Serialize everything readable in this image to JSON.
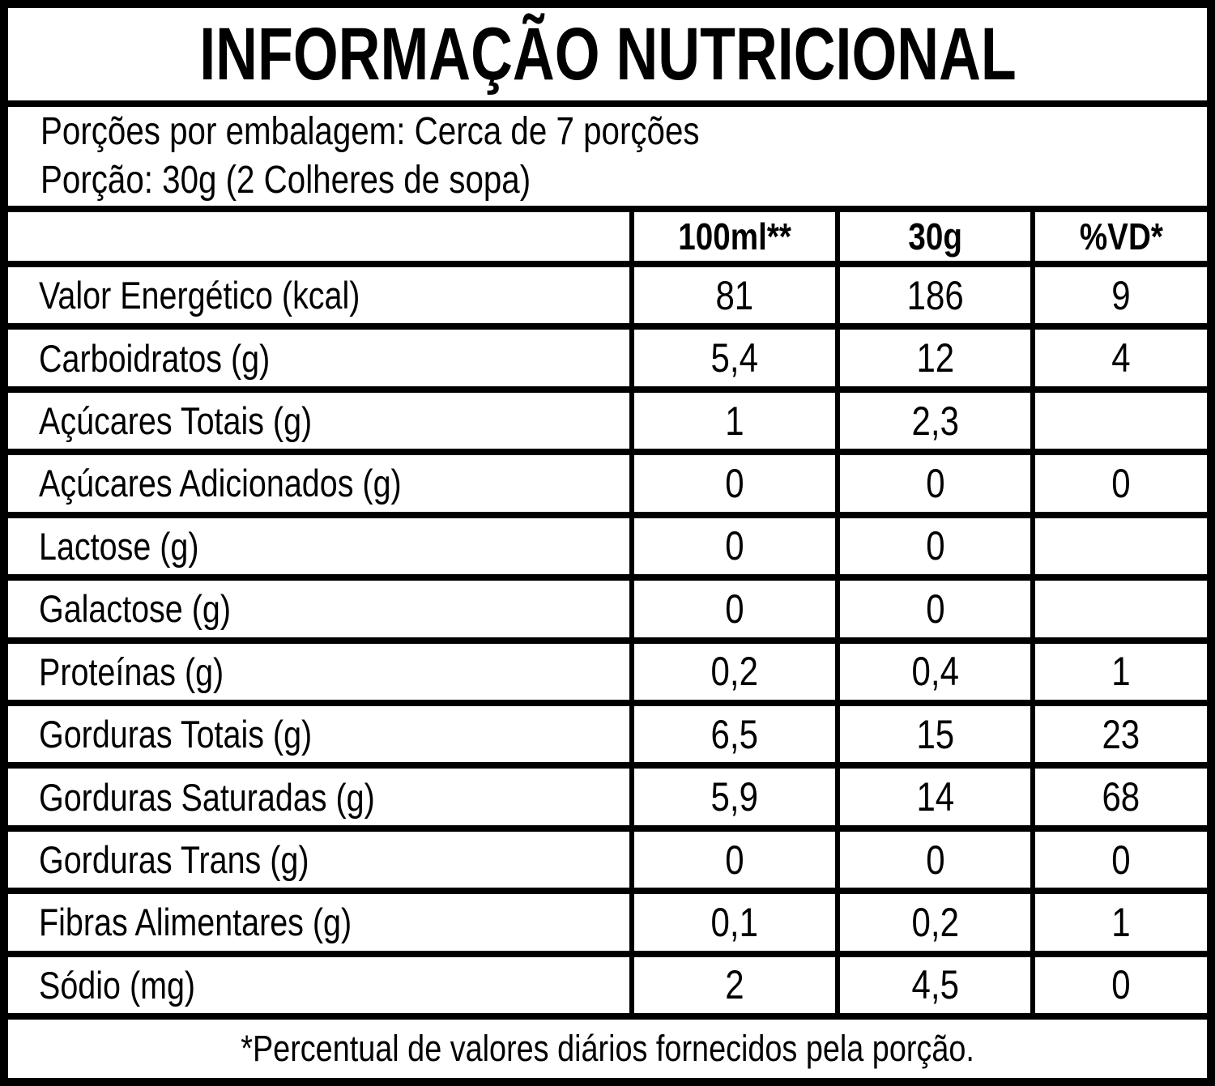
{
  "title": "INFORMAÇÃO NUTRICIONAL",
  "serving_info": {
    "line1": "Porções por embalagem: Cerca de 7 porções",
    "line2": "Porção: 30g (2 Colheres de sopa)"
  },
  "table": {
    "columns": [
      "",
      "100ml**",
      "30g",
      "%VD*"
    ],
    "rows": [
      {
        "label": "Valor Energético (kcal)",
        "per_100ml": "81",
        "per_30g": "186",
        "vd_percent": "9"
      },
      {
        "label": "Carboidratos (g)",
        "per_100ml": "5,4",
        "per_30g": "12",
        "vd_percent": "4"
      },
      {
        "label": "Açúcares Totais (g)",
        "per_100ml": "1",
        "per_30g": "2,3",
        "vd_percent": ""
      },
      {
        "label": "Açúcares Adicionados (g)",
        "per_100ml": "0",
        "per_30g": "0",
        "vd_percent": "0"
      },
      {
        "label": "Lactose (g)",
        "per_100ml": "0",
        "per_30g": "0",
        "vd_percent": ""
      },
      {
        "label": "Galactose (g)",
        "per_100ml": "0",
        "per_30g": "0",
        "vd_percent": ""
      },
      {
        "label": "Proteínas (g)",
        "per_100ml": "0,2",
        "per_30g": "0,4",
        "vd_percent": "1"
      },
      {
        "label": "Gorduras Totais (g)",
        "per_100ml": "6,5",
        "per_30g": "15",
        "vd_percent": "23"
      },
      {
        "label": "Gorduras Saturadas (g)",
        "per_100ml": "5,9",
        "per_30g": "14",
        "vd_percent": "68"
      },
      {
        "label": "Gorduras Trans (g)",
        "per_100ml": "0",
        "per_30g": "0",
        "vd_percent": "0"
      },
      {
        "label": "Fibras Alimentares (g)",
        "per_100ml": "0,1",
        "per_30g": "0,2",
        "vd_percent": "1"
      },
      {
        "label": "Sódio (mg)",
        "per_100ml": "2",
        "per_30g": "4,5",
        "vd_percent": "0"
      }
    ]
  },
  "footnote": "*Percentual de valores diários fornecidos pela porção.",
  "colors": {
    "border": "#000000",
    "background": "#ffffff",
    "text": "#000000"
  }
}
